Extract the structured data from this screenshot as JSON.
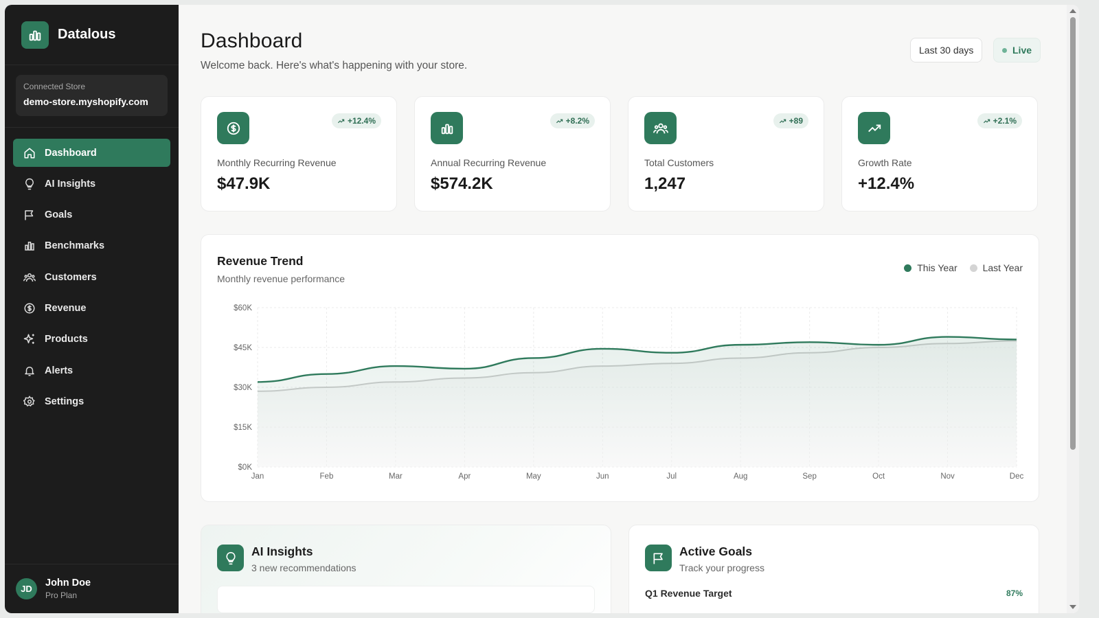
{
  "brand": {
    "name": "Datalous",
    "icon": "bar-chart-icon"
  },
  "store": {
    "label": "Connected Store",
    "value": "demo-store.myshopify.com"
  },
  "nav": {
    "items": [
      {
        "label": "Dashboard",
        "icon": "home-icon",
        "active": true
      },
      {
        "label": "AI Insights",
        "icon": "lightbulb-icon",
        "active": false
      },
      {
        "label": "Goals",
        "icon": "flag-icon",
        "active": false
      },
      {
        "label": "Benchmarks",
        "icon": "bar-chart-icon",
        "active": false
      },
      {
        "label": "Customers",
        "icon": "users-icon",
        "active": false
      },
      {
        "label": "Revenue",
        "icon": "dollar-icon",
        "active": false
      },
      {
        "label": "Products",
        "icon": "sparkles-icon",
        "active": false
      },
      {
        "label": "Alerts",
        "icon": "bell-icon",
        "active": false
      },
      {
        "label": "Settings",
        "icon": "gear-icon",
        "active": false
      }
    ]
  },
  "user": {
    "initials": "JD",
    "name": "John Doe",
    "plan": "Pro Plan"
  },
  "header": {
    "title": "Dashboard",
    "subtitle": "Welcome back. Here's what's happening with your store.",
    "range_label": "Last 30 days",
    "live_label": "Live"
  },
  "stats": [
    {
      "label": "Monthly Recurring Revenue",
      "value": "$47.9K",
      "badge": "+12.4%",
      "icon": "dollar-icon"
    },
    {
      "label": "Annual Recurring Revenue",
      "value": "$574.2K",
      "badge": "+8.2%",
      "icon": "bar-chart-icon"
    },
    {
      "label": "Total Customers",
      "value": "1,247",
      "badge": "+89",
      "icon": "users-icon"
    },
    {
      "label": "Growth Rate",
      "value": "+12.4%",
      "badge": "+2.1%",
      "icon": "trending-up-icon"
    }
  ],
  "chart_card": {
    "title": "Revenue Trend",
    "subtitle": "Monthly revenue performance"
  },
  "chart_data": {
    "type": "area",
    "categories": [
      "Jan",
      "Feb",
      "Mar",
      "Apr",
      "May",
      "Jun",
      "Jul",
      "Aug",
      "Sep",
      "Oct",
      "Nov",
      "Dec"
    ],
    "y_ticks": [
      "$60K",
      "$45K",
      "$30K",
      "$15K",
      "$0K"
    ],
    "ylim": [
      0,
      60000
    ],
    "grid": true,
    "legend_position": "top-right",
    "series": [
      {
        "name": "This Year",
        "color": "#2f7a5c",
        "values": [
          32000,
          35000,
          38000,
          37000,
          41000,
          44500,
          43000,
          46000,
          47000,
          46000,
          49000,
          48000
        ]
      },
      {
        "name": "Last Year",
        "color": "#c9c9c9",
        "values": [
          28500,
          30000,
          32000,
          33500,
          35500,
          38000,
          39000,
          41000,
          43000,
          45000,
          46500,
          47500
        ]
      }
    ]
  },
  "ai_insights": {
    "title": "AI Insights",
    "subtitle": "3 new recommendations",
    "icon": "lightbulb-icon"
  },
  "active_goals": {
    "title": "Active Goals",
    "subtitle": "Track your progress",
    "icon": "flag-icon",
    "goal_label": "Q1 Revenue Target",
    "goal_pct": "87%"
  },
  "colors": {
    "accent": "#2f7a5c",
    "sidebar_bg": "#1c1c1c",
    "page_bg": "#f7f7f6"
  }
}
